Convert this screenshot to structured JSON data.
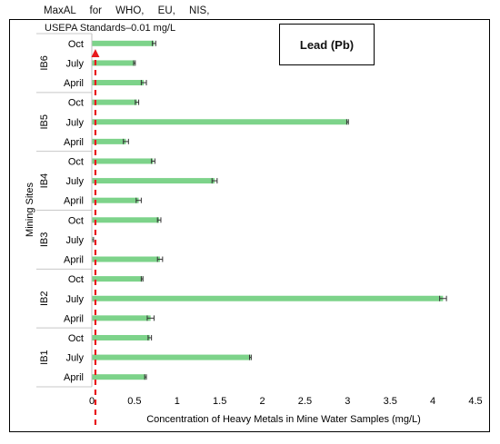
{
  "annotation": {
    "line1": "MaxAL   for   WHO,   EU,   NIS,",
    "line2": "USEPA Standards–0.01 mg/L"
  },
  "chart_data": {
    "type": "bar",
    "orientation": "horizontal",
    "title": "Lead (Pb)",
    "xlabel": "Concentration of Heavy Metals in Mine Water Samples (mg/L)",
    "ylabel": "Mining Sites",
    "xlim": [
      0,
      4.5
    ],
    "xticks": [
      "0",
      "0.5",
      "1",
      "1.5",
      "2",
      "2.5",
      "3",
      "3.5",
      "4",
      "4.5"
    ],
    "threshold": 0.01,
    "bar_color": "#7dd38a",
    "threshold_color": "#e8191c",
    "groups": [
      {
        "site": "IB1",
        "bars": [
          {
            "month": "April",
            "value": 0.63,
            "error": 0.01
          },
          {
            "month": "July",
            "value": 1.86,
            "error": 0.01
          },
          {
            "month": "Oct",
            "value": 0.68,
            "error": 0.02
          }
        ]
      },
      {
        "site": "IB2",
        "bars": [
          {
            "month": "April",
            "value": 0.69,
            "error": 0.04
          },
          {
            "month": "July",
            "value": 4.12,
            "error": 0.04
          },
          {
            "month": "Oct",
            "value": 0.59,
            "error": 0.01
          }
        ]
      },
      {
        "site": "IB3",
        "bars": [
          {
            "month": "April",
            "value": 0.8,
            "error": 0.03
          },
          {
            "month": "July",
            "value": 0.01,
            "error": 0.01
          },
          {
            "month": "Oct",
            "value": 0.79,
            "error": 0.02
          }
        ]
      },
      {
        "site": "IB4",
        "bars": [
          {
            "month": "April",
            "value": 0.55,
            "error": 0.03
          },
          {
            "month": "July",
            "value": 1.44,
            "error": 0.03
          },
          {
            "month": "Oct",
            "value": 0.72,
            "error": 0.02
          }
        ]
      },
      {
        "site": "IB5",
        "bars": [
          {
            "month": "April",
            "value": 0.4,
            "error": 0.03
          },
          {
            "month": "July",
            "value": 3.0,
            "error": 0.01
          },
          {
            "month": "Oct",
            "value": 0.53,
            "error": 0.02
          }
        ]
      },
      {
        "site": "IB6",
        "bars": [
          {
            "month": "April",
            "value": 0.61,
            "error": 0.03
          },
          {
            "month": "July",
            "value": 0.5,
            "error": 0.01
          },
          {
            "month": "Oct",
            "value": 0.73,
            "error": 0.02
          }
        ]
      }
    ]
  }
}
